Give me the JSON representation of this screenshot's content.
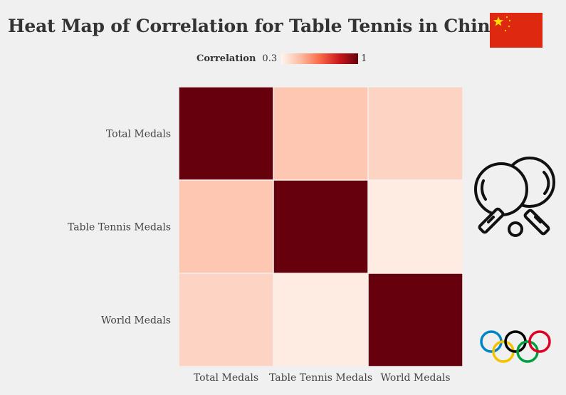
{
  "chart_data": {
    "type": "heatmap",
    "title": "Heat Map of Correlation for Table Tennis in China",
    "x_labels": [
      "Total Medals",
      "Table Tennis Medals",
      "World Medals"
    ],
    "y_labels": [
      "Total Medals",
      "Table Tennis Medals",
      "World Medals"
    ],
    "values": [
      [
        1.0,
        0.44,
        0.4
      ],
      [
        0.44,
        1.0,
        0.33
      ],
      [
        0.4,
        0.33,
        1.0
      ]
    ],
    "colorbar": {
      "title": "Correlation",
      "min_label": "0.3",
      "max_label": "1",
      "min": 0.3,
      "max": 1,
      "colors": [
        "#fff5f0",
        "#fcbba1",
        "#fb6a4a",
        "#cb181d",
        "#67000d"
      ]
    },
    "grid": false,
    "legend_position": "top"
  },
  "icons": {
    "flag": "china-flag-icon",
    "paddles": "table-tennis-paddles-icon",
    "rings": "olympic-rings-icon"
  }
}
